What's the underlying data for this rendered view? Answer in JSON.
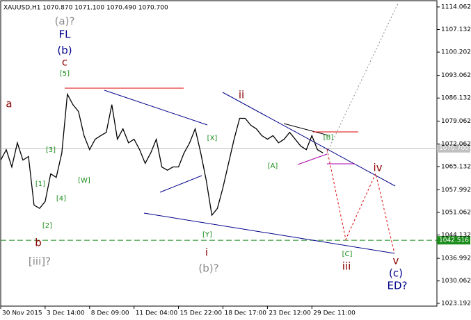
{
  "chart_data": {
    "type": "line",
    "title": "XAUUSD,H1  1070.870 1071.100 1070.490 1070.700",
    "series": [
      {
        "name": "XAUUSD",
        "color": "#000000",
        "x": [
          0,
          2,
          4,
          6,
          8,
          10,
          12,
          14,
          16,
          18,
          20,
          22,
          24,
          26,
          28,
          30,
          32,
          34,
          36,
          38,
          40,
          42,
          44,
          46,
          48,
          50,
          52,
          54,
          56,
          58,
          60,
          62,
          64,
          66,
          68,
          70,
          72,
          74,
          76,
          78,
          80,
          82,
          84,
          86,
          88,
          90,
          92,
          94,
          96,
          98,
          100,
          102,
          104,
          106,
          108,
          110,
          112,
          114,
          116
        ],
        "values": [
          1067.1,
          1070.3,
          1065.0,
          1072.4,
          1067.1,
          1068.2,
          1053.3,
          1052.3,
          1054.4,
          1062.9,
          1061.8,
          1069.3,
          1087.3,
          1084.1,
          1082.0,
          1074.6,
          1070.3,
          1073.5,
          1074.6,
          1075.6,
          1084.1,
          1073.5,
          1076.7,
          1072.4,
          1073.5,
          1070.3,
          1066.1,
          1069.3,
          1073.5,
          1065.0,
          1064.0,
          1065.0,
          1065.0,
          1069.3,
          1072.4,
          1076.7,
          1069.3,
          1060.8,
          1050.2,
          1052.3,
          1058.7,
          1066.1,
          1073.5,
          1079.9,
          1079.9,
          1077.8,
          1076.7,
          1074.6,
          1073.5,
          1074.6,
          1072.4,
          1073.5,
          1075.6,
          1073.5,
          1071.4,
          1070.3,
          1074.6,
          1070.3,
          1069.3
        ]
      }
    ],
    "xlim": [
      0,
      157
    ],
    "xticks": [
      {
        "value": 0,
        "label": "30 Nov 2015"
      },
      {
        "value": 16,
        "label": "3 Dec 14:00"
      },
      {
        "value": 32,
        "label": "8 Dec 09:00"
      },
      {
        "value": 48,
        "label": "11 Dec 04:00"
      },
      {
        "value": 64,
        "label": "15 Dec 22:00"
      },
      {
        "value": 80,
        "label": "18 Dec 17:00"
      },
      {
        "value": 96,
        "label": "23 Dec 12:00"
      },
      {
        "value": 112,
        "label": "29 Dec 11:00"
      }
    ],
    "ylim": [
      1022.34,
      1115.97
    ],
    "yticks": [
      1114.062,
      1107.132,
      1100.202,
      1093.062,
      1086.132,
      1079.062,
      1072.062,
      1065.132,
      1057.992,
      1051.062,
      1044.132,
      1036.992,
      1030.062,
      1023.192
    ],
    "price_lines": [
      {
        "value": 1070.7,
        "label": "1070.700",
        "color": "#c0c0c0"
      },
      {
        "value": 1042.516,
        "label": "1042.516",
        "color": "#1a8c1a"
      }
    ],
    "annotations": [
      "(a)?",
      "FL",
      "(b)",
      "c",
      "[5]",
      "a",
      "[3]",
      "[1]",
      "[4]",
      "[2]",
      "b",
      "[iii]?",
      "[W]",
      "[X]",
      "[Y]",
      "i",
      "(b)?",
      "ii",
      "[A]",
      "[B]",
      "[C]",
      "iii",
      "iv",
      "v",
      "(c)",
      "ED?"
    ]
  }
}
